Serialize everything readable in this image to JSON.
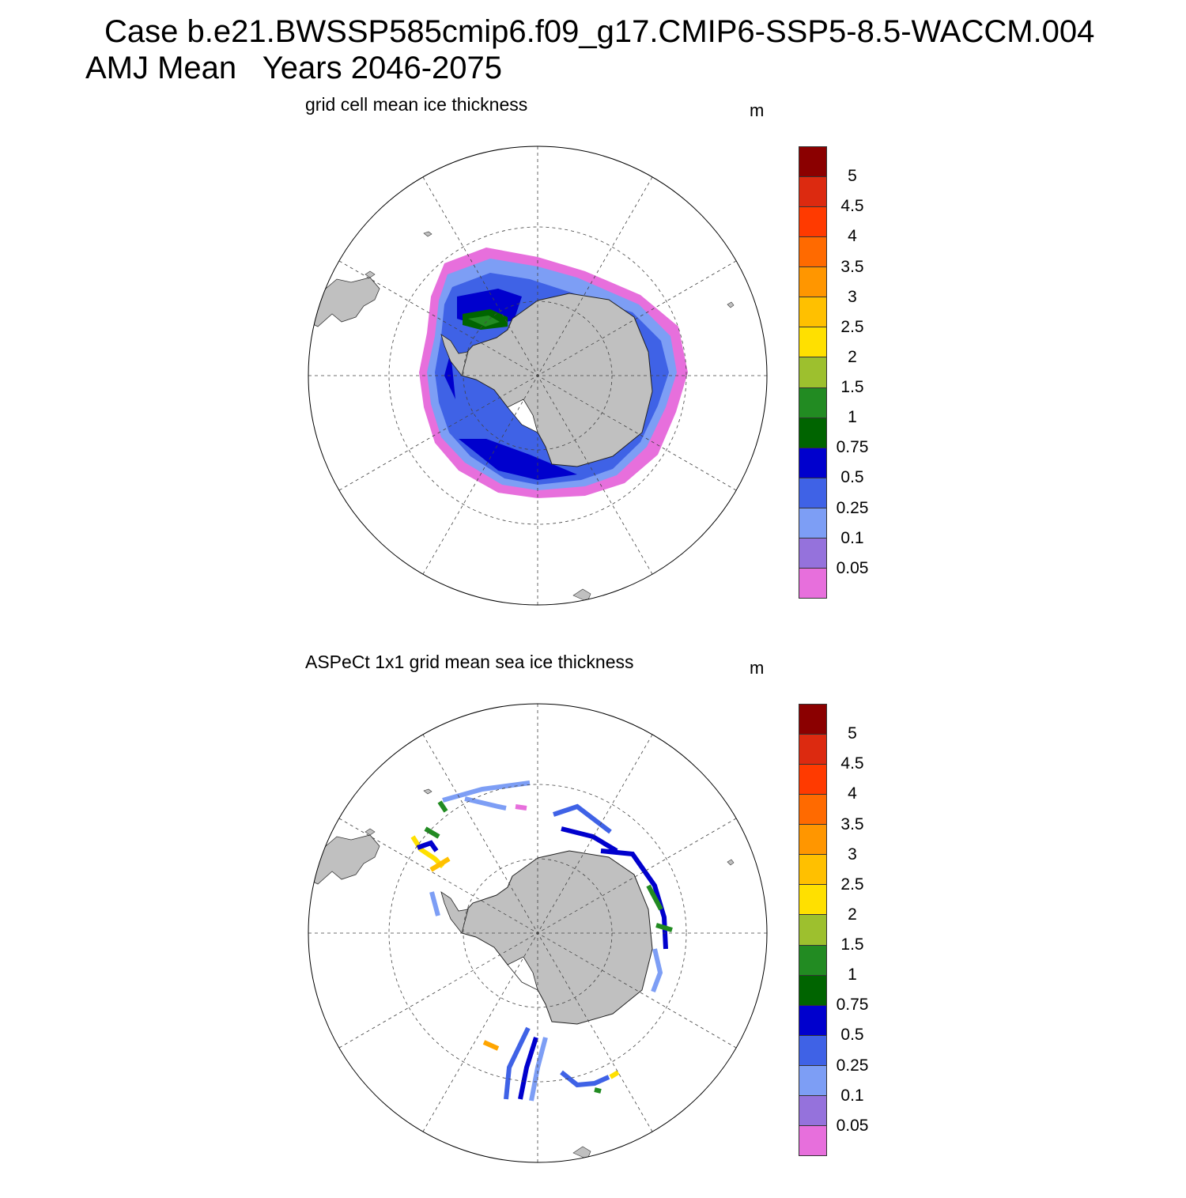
{
  "title": {
    "line1": "Case b.e21.BWSSP585cmip6.f09_g17.CMIP6-SSP5-8.5-WACCM.004",
    "line2": "AMJ Mean   Years 2046-2075"
  },
  "colorbar": {
    "labels": [
      "5",
      "4.5",
      "4",
      "3.5",
      "3",
      "2.5",
      "2",
      "1.5",
      "1",
      "0.75",
      "0.5",
      "0.25",
      "0.1",
      "0.05"
    ],
    "colors_top_to_bottom": [
      "#8b0000",
      "#dc2a10",
      "#ff3a00",
      "#ff6a00",
      "#ff9600",
      "#ffc000",
      "#ffe000",
      "#9dc02e",
      "#228b22",
      "#006400",
      "#0000cd",
      "#3f62e6",
      "#7d9ef5",
      "#9572dc",
      "#e76fdc"
    ]
  },
  "panels": [
    {
      "subtitle": "grid cell mean ice thickness",
      "unit": "m",
      "field": "model sea ice thickness (southern hemisphere polar stereographic)"
    },
    {
      "subtitle": "ASPeCt 1x1 grid mean sea ice thickness",
      "unit": "m",
      "field": "ASPeCt observational tracks"
    }
  ],
  "map_style": {
    "land_color": "#c0c0c0",
    "grid": "dashed",
    "projection": "south polar stereographic"
  }
}
